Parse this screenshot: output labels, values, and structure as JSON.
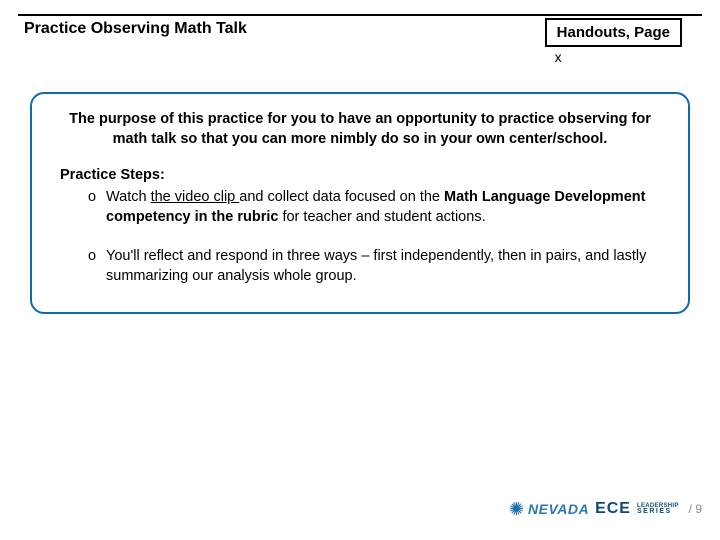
{
  "header": {
    "title": "Practice Observing Math Talk",
    "handouts_label": "Handouts, Page",
    "handouts_x": "x"
  },
  "purpose": "The purpose of this practice for you to have an opportunity to practice observing for math talk so that you can more nimbly do so in your own center/school.",
  "steps_heading": "Practice Steps:",
  "bullet": "o",
  "step1": {
    "pre": "Watch ",
    "link": "the video clip ",
    "mid": "and collect data focused on the ",
    "bold": "Math Language Development competency in the rubric",
    "post": " for teacher and student actions."
  },
  "step2": "You'll reflect and respond in three ways – first independently, then in pairs, and lastly summarizing our analysis whole group.",
  "footer": {
    "nevada": "NEVADA",
    "ece": "ECE",
    "leaders": "LEADERSHIP",
    "series": "SERIES",
    "page": "/ 9"
  },
  "colors": {
    "box_border": "#0f6ba8",
    "logo_light": "#2a7ab0",
    "logo_dark": "#104a73",
    "page_num": "#8a8a8a"
  }
}
